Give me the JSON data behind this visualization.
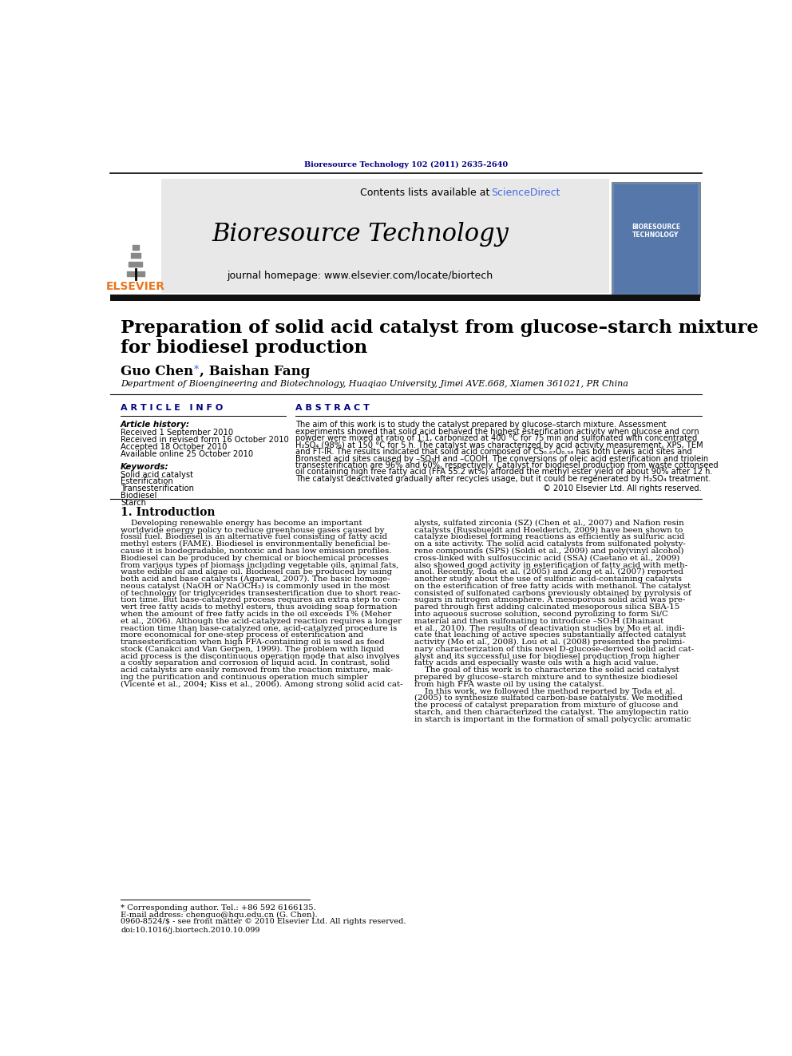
{
  "journal_ref": "Bioresource Technology 102 (2011) 2635-2640",
  "header_text": "Contents lists available at ",
  "sciencedirect_label": "ScienceDirect",
  "journal_name": "Bioresource Technology",
  "journal_homepage": "journal homepage: www.elsevier.com/locate/biortech",
  "elsevier_text": "ELSEVIER",
  "paper_title_line1": "Preparation of solid acid catalyst from glucose–starch mixture",
  "paper_title_line2": "for biodiesel production",
  "authors_part1": "Guo Chen",
  "authors_star": " *",
  "authors_part2": ", Baishan Fang",
  "affiliation": "Department of Bioengineering and Biotechnology, Huaqiao University, Jimei AVE.668, Xiamen 361021, PR China",
  "article_info_header": "A R T I C L E   I N F O",
  "abstract_header": "A B S T R A C T",
  "article_history_label": "Article history:",
  "received_1": "Received 1 September 2010",
  "received_revised": "Received in revised form 16 October 2010",
  "accepted": "Accepted 18 October 2010",
  "available": "Available online 25 October 2010",
  "keywords_label": "Keywords:",
  "keywords": [
    "Solid acid catalyst",
    "Esterification",
    "Transesterification",
    "Biodiesel",
    "Starch"
  ],
  "abstract_lines": [
    "The aim of this work is to study the catalyst prepared by glucose–starch mixture. Assessment",
    "experiments showed that solid acid behaved the highest esterification activity when glucose and corn",
    "powder were mixed at ratio of 1:1, carbonized at 400 °C for 75 min and sulfonated with concentrated",
    "H₂SO₄ (98%) at 150 °C for 5 h. The catalyst was characterized by acid activity measurement, XPS, TEM",
    "and FT-IR. The results indicated that solid acid composed of CS₀.₆₇O₀.₅₄ has both Lewis acid sites and",
    "Bronsted acid sites caused by –SO₃H and –COOH. The conversions of oleic acid esterification and triolein",
    "transesterification are 96% and 60%, respectively. Catalyst for biodiesel production from waste cottonseed",
    "oil containing high free fatty acid (FFA 55.2 wt%) afforded the methyl ester yield of about 90% after 12 h.",
    "The catalyst deactivated gradually after recycles usage, but it could be regenerated by H₂SO₄ treatment."
  ],
  "copyright": "© 2010 Elsevier Ltd. All rights reserved.",
  "intro_header": "1. Introduction",
  "intro_left_lines": [
    "    Developing renewable energy has become an important",
    "worldwide energy policy to reduce greenhouse gases caused by",
    "fossil fuel. Biodiesel is an alternative fuel consisting of fatty acid",
    "methyl esters (FAME). Biodiesel is environmentally beneficial be-",
    "cause it is biodegradable, nontoxic and has low emission profiles.",
    "Biodiesel can be produced by chemical or biochemical processes",
    "from various types of biomass including vegetable oils, animal fats,",
    "waste edible oil and algae oil. Biodiesel can be produced by using",
    "both acid and base catalysts (Agarwal, 2007). The basic homoge-",
    "neous catalyst (NaOH or NaOCH₃) is commonly used in the most",
    "of technology for triglycerides transesterification due to short reac-",
    "tion time. But base-catalyzed process requires an extra step to con-",
    "vert free fatty acids to methyl esters, thus avoiding soap formation",
    "when the amount of free fatty acids in the oil exceeds 1% (Meher",
    "et al., 2006). Although the acid-catalyzed reaction requires a longer",
    "reaction time than base-catalyzed one, acid-catalyzed procedure is",
    "more economical for one-step process of esterification and",
    "transesterification when high FFA-containing oil is used as feed",
    "stock (Canakci and Van Gerpen, 1999). The problem with liquid",
    "acid process is the discontinuous operation mode that also involves",
    "a costly separation and corrosion of liquid acid. In contrast, solid",
    "acid catalysts are easily removed from the reaction mixture, mak-",
    "ing the purification and continuous operation much simpler",
    "(Vicente et al., 2004; Kiss et al., 2006). Among strong solid acid cat-"
  ],
  "intro_right_lines": [
    "alysts, sulfated zirconia (SZ) (Chen et al., 2007) and Nafion resin",
    "catalysts (Russbueldt and Hoelderich, 2009) have been shown to",
    "catalyze biodiesel forming reactions as efficiently as sulfuric acid",
    "on a site activity. The solid acid catalysts from sulfonated polysty-",
    "rene compounds (SPS) (Soldi et al., 2009) and poly(vinyl alcohol)",
    "cross-linked with sulfosuccinic acid (SSA) (Caetano et al., 2009)",
    "also showed good activity in esterification of fatty acid with meth-",
    "anol. Recently, Toda et al. (2005) and Zong et al. (2007) reported",
    "another study about the use of sulfonic acid-containing catalysts",
    "on the esterification of free fatty acids with methanol. The catalyst",
    "consisted of sulfonated carbons previously obtained by pyrolysis of",
    "sugars in nitrogen atmosphere. A mesoporous solid acid was pre-",
    "pared through first adding calcinated mesoporous silica SBA-15",
    "into aqueous sucrose solution, second pyrolizing to form Si/C",
    "material and then sulfonating to introduce –SO₃H (Dhainaut",
    "et al., 2010). The results of deactivation studies by Mo et al. indi-",
    "cate that leaching of active species substantially affected catalyst",
    "activity (Mo et al., 2008). Lou et al. (2008) presented the prelimi-",
    "nary characterization of this novel D-glucose-derived solid acid cat-",
    "alyst and its successful use for biodiesel production from higher",
    "fatty acids and especially waste oils with a high acid value.",
    "    The goal of this work is to characterize the solid acid catalyst",
    "prepared by glucose–starch mixture and to synthesize biodiesel",
    "from high FFA waste oil by using the catalyst.",
    "    In this work, we followed the method reported by Toda et al.",
    "(2005) to synthesize sulfated carbon-base catalysts. We modified",
    "the process of catalyst preparation from mixture of glucose and",
    "starch, and then characterized the catalyst. The amylopectin ratio",
    "in starch is important in the formation of small polycyclic aromatic"
  ],
  "footnote_star": "* Corresponding author. Tel.: +86 592 6166135.",
  "footnote_email": "E-mail address: chenguo@hqu.edu.cn (G. Chen).",
  "issn_line": "0960-8524/$ - see front matter © 2010 Elsevier Ltd. All rights reserved.",
  "doi_line": "doi:10.1016/j.biortech.2010.10.099",
  "bg_color": "#ffffff",
  "header_bg": "#e8e8e8",
  "journal_ref_color": "#000080",
  "elsevier_color": "#e87722",
  "sciencedirect_color": "#4169e1",
  "header_section_color": "#000080",
  "cover_bg": "#6B8CAE"
}
